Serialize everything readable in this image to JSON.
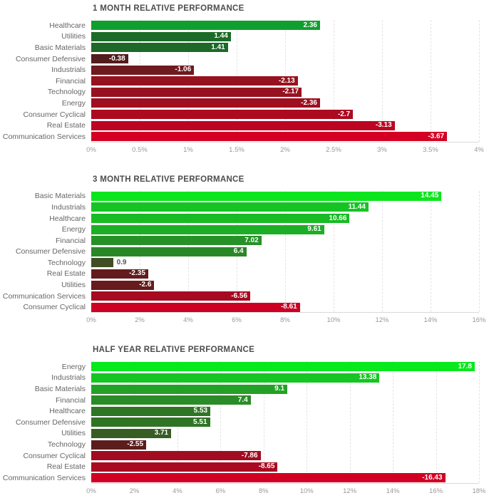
{
  "chart_data": [
    {
      "type": "bar",
      "orientation": "horizontal",
      "title": "1 MONTH RELATIVE PERFORMANCE",
      "xlim": [
        0,
        4
      ],
      "x_ticks": [
        "0%",
        "0.5%",
        "1%",
        "1.5%",
        "2%",
        "2.5%",
        "3%",
        "3.5%",
        "4%"
      ],
      "grid": true,
      "legend": "none",
      "bars_plot_absolute_value": true,
      "bars": [
        {
          "category": "Healthcare",
          "value": 2.36,
          "label": "2.36",
          "color": "#109f2e"
        },
        {
          "category": "Utilities",
          "value": 1.44,
          "label": "1.44",
          "color": "#1b6b28"
        },
        {
          "category": "Basic Materials",
          "value": 1.41,
          "label": "1.41",
          "color": "#1c6928"
        },
        {
          "category": "Consumer Defensive",
          "value": -0.38,
          "label": "-0.38",
          "color": "#521d1d"
        },
        {
          "category": "Industrials",
          "value": -1.06,
          "label": "-1.06",
          "color": "#6e1a1e"
        },
        {
          "category": "Financial",
          "value": -2.13,
          "label": "-2.13",
          "color": "#96121f"
        },
        {
          "category": "Technology",
          "value": -2.17,
          "label": "-2.17",
          "color": "#971220"
        },
        {
          "category": "Energy",
          "value": -2.36,
          "label": "-2.36",
          "color": "#9e0f20"
        },
        {
          "category": "Consumer Cyclical",
          "value": -2.7,
          "label": "-2.7",
          "color": "#ab0a21"
        },
        {
          "category": "Real Estate",
          "value": -3.13,
          "label": "-3.13",
          "color": "#bc0522"
        },
        {
          "category": "Communication Services",
          "value": -3.67,
          "label": "-3.67",
          "color": "#d40023"
        }
      ]
    },
    {
      "type": "bar",
      "orientation": "horizontal",
      "title": "3 MONTH RELATIVE PERFORMANCE",
      "xlim": [
        0,
        16
      ],
      "x_ticks": [
        "0%",
        "2%",
        "4%",
        "6%",
        "8%",
        "10%",
        "12%",
        "14%",
        "16%"
      ],
      "grid": true,
      "legend": "none",
      "bars_plot_absolute_value": true,
      "bars": [
        {
          "category": "Basic Materials",
          "value": 14.45,
          "label": "14.45",
          "color": "#0ce51e"
        },
        {
          "category": "Industrials",
          "value": 11.44,
          "label": "11.44",
          "color": "#15c423"
        },
        {
          "category": "Healthcare",
          "value": 10.66,
          "label": "10.66",
          "color": "#18bb24"
        },
        {
          "category": "Energy",
          "value": 9.61,
          "label": "9.61",
          "color": "#1cae25"
        },
        {
          "category": "Financial",
          "value": 7.02,
          "label": "7.02",
          "color": "#269127"
        },
        {
          "category": "Consumer Defensive",
          "value": 6.4,
          "label": "6.4",
          "color": "#298826"
        },
        {
          "category": "Technology",
          "value": 0.9,
          "label": "0.9",
          "color": "#414d24"
        },
        {
          "category": "Real Estate",
          "value": -2.35,
          "label": "-2.35",
          "color": "#631c1d"
        },
        {
          "category": "Utilities",
          "value": -2.6,
          "label": "-2.6",
          "color": "#671b1d"
        },
        {
          "category": "Communication Services",
          "value": -6.56,
          "label": "-6.56",
          "color": "#a60b21"
        },
        {
          "category": "Consumer Cyclical",
          "value": -8.61,
          "label": "-8.61",
          "color": "#cb0023"
        }
      ]
    },
    {
      "type": "bar",
      "orientation": "horizontal",
      "title": "HALF YEAR RELATIVE PERFORMANCE",
      "xlim": [
        0,
        18
      ],
      "x_ticks": [
        "0%",
        "2%",
        "4%",
        "6%",
        "8%",
        "10%",
        "12%",
        "14%",
        "16%",
        "18%"
      ],
      "grid": true,
      "legend": "none",
      "bars_plot_absolute_value": true,
      "bars": [
        {
          "category": "Energy",
          "value": 17.8,
          "label": "17.8",
          "color": "#07e91d"
        },
        {
          "category": "Industrials",
          "value": 13.38,
          "label": "13.38",
          "color": "#16c523"
        },
        {
          "category": "Basic Materials",
          "value": 9.1,
          "label": "9.1",
          "color": "#23a126"
        },
        {
          "category": "Financial",
          "value": 7.4,
          "label": "7.4",
          "color": "#2a8c27"
        },
        {
          "category": "Healthcare",
          "value": 5.53,
          "label": "5.53",
          "color": "#2f7525"
        },
        {
          "category": "Consumer Defensive",
          "value": 5.51,
          "label": "5.51",
          "color": "#2f7425"
        },
        {
          "category": "Utilities",
          "value": 3.71,
          "label": "3.71",
          "color": "#375c24"
        },
        {
          "category": "Technology",
          "value": -2.55,
          "label": "-2.55",
          "color": "#5c1d1d"
        },
        {
          "category": "Consumer Cyclical",
          "value": -7.86,
          "label": "-7.86",
          "color": "#a10c20"
        },
        {
          "category": "Real Estate",
          "value": -8.65,
          "label": "-8.65",
          "color": "#a90a21"
        },
        {
          "category": "Communication Services",
          "value": -16.43,
          "label": "-16.43",
          "color": "#d10023"
        }
      ]
    }
  ]
}
